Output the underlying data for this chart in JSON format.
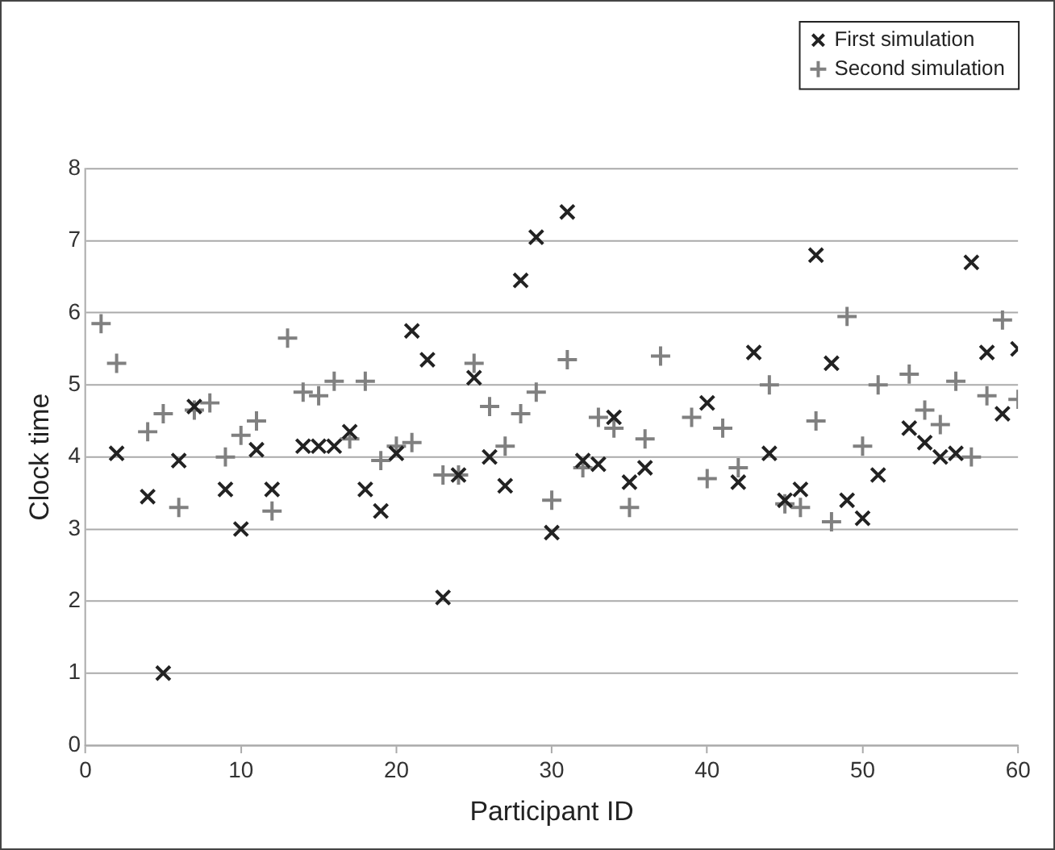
{
  "chart_data": {
    "type": "scatter",
    "xlabel": "Participant ID",
    "ylabel": "Clock time",
    "xlim": [
      0,
      60
    ],
    "xticks": [
      0,
      10,
      20,
      30,
      40,
      50,
      60
    ],
    "ylim": [
      0,
      8
    ],
    "yticks": [
      0,
      1,
      2,
      3,
      4,
      5,
      6,
      7,
      8
    ],
    "grid": "y",
    "legend": "top right",
    "series": [
      {
        "name": "First simulation",
        "color": "#222222",
        "marker": "cross",
        "x": [
          2,
          4,
          5,
          6,
          7,
          9,
          10,
          11,
          12,
          14,
          15,
          16,
          17,
          18,
          19,
          20,
          21,
          22,
          23,
          24,
          25,
          26,
          27,
          28,
          29,
          30,
          31,
          32,
          33,
          34,
          35,
          36,
          40,
          42,
          43,
          44,
          45,
          46,
          47,
          48,
          49,
          50,
          51,
          53,
          54,
          55,
          56,
          57,
          58,
          59,
          60
        ],
        "values": [
          4.05,
          3.45,
          1.0,
          3.95,
          4.7,
          3.55,
          3.0,
          4.1,
          3.55,
          4.15,
          4.15,
          4.15,
          4.35,
          3.55,
          3.25,
          4.05,
          5.75,
          5.35,
          2.05,
          3.75,
          5.1,
          4.0,
          3.6,
          6.45,
          7.05,
          2.95,
          7.4,
          3.95,
          3.9,
          4.55,
          3.65,
          3.85,
          4.75,
          3.65,
          5.45,
          4.05,
          3.4,
          3.55,
          6.8,
          5.3,
          3.4,
          3.15,
          3.75,
          4.4,
          4.2,
          4.0,
          4.05,
          6.7,
          5.45,
          4.6,
          5.5
        ]
      },
      {
        "name": "Second simulation",
        "color": "#808080",
        "marker": "plus",
        "x": [
          1,
          2,
          4,
          5,
          6,
          7,
          8,
          9,
          10,
          11,
          12,
          13,
          14,
          15,
          16,
          17,
          18,
          19,
          20,
          21,
          23,
          24,
          25,
          26,
          27,
          28,
          29,
          30,
          31,
          32,
          33,
          34,
          35,
          36,
          37,
          39,
          40,
          41,
          42,
          44,
          45,
          46,
          47,
          48,
          49,
          50,
          51,
          53,
          54,
          55,
          56,
          57,
          58,
          59,
          60
        ],
        "values": [
          5.85,
          5.3,
          4.35,
          4.6,
          3.3,
          4.65,
          4.75,
          4.0,
          4.3,
          4.5,
          3.25,
          5.65,
          4.9,
          4.85,
          5.05,
          4.25,
          5.05,
          3.95,
          4.15,
          4.2,
          3.75,
          3.75,
          5.3,
          4.7,
          4.15,
          4.6,
          4.9,
          3.4,
          5.35,
          3.85,
          4.55,
          4.4,
          3.3,
          4.25,
          5.4,
          4.55,
          3.7,
          4.4,
          3.85,
          5.0,
          3.35,
          3.3,
          4.5,
          3.1,
          5.95,
          4.15,
          5.0,
          5.15,
          4.65,
          4.45,
          5.05,
          4.0,
          4.85,
          5.9,
          4.8
        ]
      }
    ]
  }
}
